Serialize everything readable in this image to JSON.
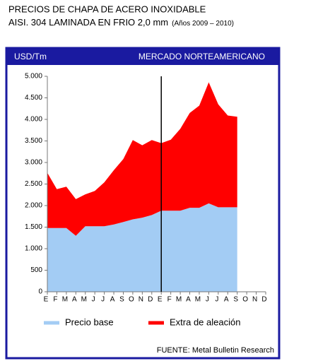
{
  "chart_data": {
    "type": "stacked-area",
    "title": "PRECIOS DE CHAPA DE ACERO INOXIDABLE",
    "subtitle": "AISI. 304 LAMINADA EN FRIO 2,0 mm",
    "period": "(Años 2009 – 2010)",
    "y_label": "USD/Tm",
    "panel_title": "MERCADO NORTEAMERICANO",
    "source": "FUENTE: Metal Bulletin Research",
    "categories": [
      "E",
      "F",
      "M",
      "A",
      "M",
      "J",
      "J",
      "A",
      "S",
      "O",
      "N",
      "D",
      "E",
      "F",
      "M",
      "A",
      "M",
      "J",
      "J",
      "A",
      "S",
      "O",
      "N",
      "D"
    ],
    "series": [
      {
        "name": "Precio base",
        "color": "#a3ccf4",
        "values": [
          1480,
          1480,
          1480,
          1300,
          1520,
          1520,
          1520,
          1560,
          1620,
          1680,
          1720,
          1780,
          1880,
          1880,
          1880,
          1950,
          1950,
          2050,
          1960,
          1960,
          1960,
          null,
          null,
          null
        ]
      },
      {
        "name": "Extra de aleación",
        "color": "#ff0000",
        "values": [
          1280,
          900,
          960,
          850,
          740,
          820,
          1020,
          1260,
          1460,
          1840,
          1680,
          1740,
          1570,
          1650,
          1900,
          2200,
          2370,
          2810,
          2390,
          2130,
          2100,
          null,
          null,
          null
        ]
      }
    ],
    "ylim": [
      0,
      5000
    ],
    "yticks": [
      0,
      {
        "value": 500,
        "label": "500"
      },
      {
        "value": 1000,
        "label": "1.000"
      },
      {
        "value": 1500,
        "label": "1.500"
      },
      {
        "value": 2000,
        "label": "2.000"
      },
      {
        "value": 2500,
        "label": "2.500"
      },
      {
        "value": 3000,
        "label": "3.000"
      },
      {
        "value": 3500,
        "label": "3.500"
      },
      {
        "value": 4000,
        "label": "4.000"
      },
      {
        "value": 4500,
        "label": "4.500"
      },
      {
        "value": 5000,
        "label": "5.000"
      }
    ],
    "legend": "bottom"
  }
}
